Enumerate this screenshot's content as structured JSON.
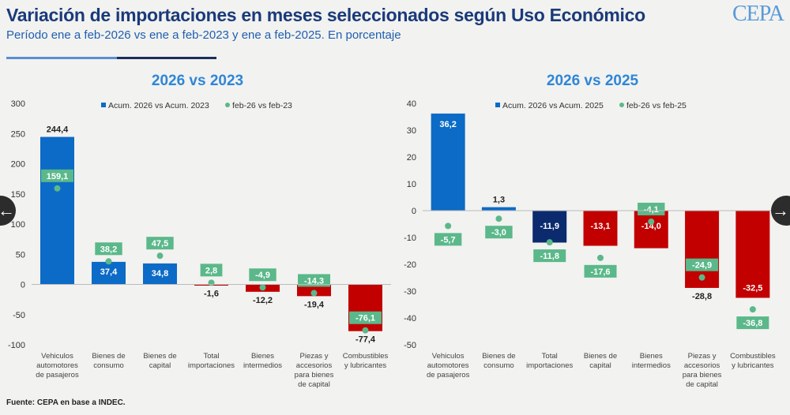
{
  "header": {
    "title": "Variación de importaciones en meses seleccionados según Uso Económico",
    "subtitle": "Período ene a feb-2026 vs ene a feb-2023 y ene a feb-2025. En porcentaje",
    "logo": "CEPA"
  },
  "footer": {
    "source": "Fuente: CEPA en base a INDEC."
  },
  "nav": {
    "prev_icon": "←",
    "next_icon": "→"
  },
  "colors": {
    "blue": "#0b6bc6",
    "navy": "#0c2b6e",
    "red": "#c20000",
    "green": "#5bb88a",
    "title": "#1a3a7a"
  },
  "chart_data": [
    {
      "type": "bar",
      "title": "2026 vs 2023",
      "categories": [
        "Vehiculos automotores de pasajeros",
        "Bienes de consumo",
        "Bienes de capital",
        "Total importaciones",
        "Bienes intermedios",
        "Piezas y accesorios para bienes de capital",
        "Combustibles y lubricantes"
      ],
      "series": [
        {
          "name": "Acum. 2026 vs Acum. 2023",
          "kind": "bar",
          "values": [
            244.4,
            37.4,
            34.8,
            -1.6,
            -12.2,
            -19.4,
            -77.4
          ],
          "labels": [
            "244,4",
            "37,4",
            "34,8",
            "-1,6",
            "-12,2",
            "-19,4",
            "-77,4"
          ]
        },
        {
          "name": "feb-26 vs feb-23",
          "kind": "point",
          "values": [
            159.1,
            38.2,
            47.5,
            2.8,
            -4.9,
            -14.3,
            -76.1
          ],
          "labels": [
            "159,1",
            "38,2",
            "47,5",
            "2,8",
            "-4,9",
            "-14,3",
            "-76,1"
          ]
        }
      ],
      "yticks": [
        "300",
        "250",
        "200",
        "150",
        "100",
        "50",
        "0",
        "-50",
        "-100"
      ],
      "ylim": [
        -100,
        300
      ],
      "legend": "top"
    },
    {
      "type": "bar",
      "title": "2026 vs 2025",
      "categories": [
        "Vehiculos automotores de pasajeros",
        "Bienes de consumo",
        "Total importaciones",
        "Bienes de capital",
        "Bienes intermedios",
        "Piezas y accesorios para bienes de capital",
        "Combustibles y lubricantes"
      ],
      "series": [
        {
          "name": "Acum. 2026 vs Acum. 2025",
          "kind": "bar",
          "values": [
            36.2,
            1.3,
            -11.9,
            -13.1,
            -14.0,
            -28.8,
            -32.5
          ],
          "labels": [
            "36,2",
            "1,3",
            "-11,9",
            "-13,1",
            "-14,0",
            "-28,8",
            "-32,5"
          ]
        },
        {
          "name": "feb-26 vs feb-25",
          "kind": "point",
          "values": [
            -5.7,
            -3.0,
            -11.8,
            -17.6,
            -4.1,
            -24.9,
            -36.8
          ],
          "labels": [
            "-5,7",
            "-3,0",
            "-11,8",
            "-17,6",
            "-4,1",
            "-24,9",
            "-36,8"
          ]
        }
      ],
      "yticks": [
        "40",
        "30",
        "20",
        "10",
        "0",
        "-10",
        "-20",
        "-30",
        "-40",
        "-50"
      ],
      "ylim": [
        -50,
        40
      ],
      "legend": "top"
    }
  ]
}
